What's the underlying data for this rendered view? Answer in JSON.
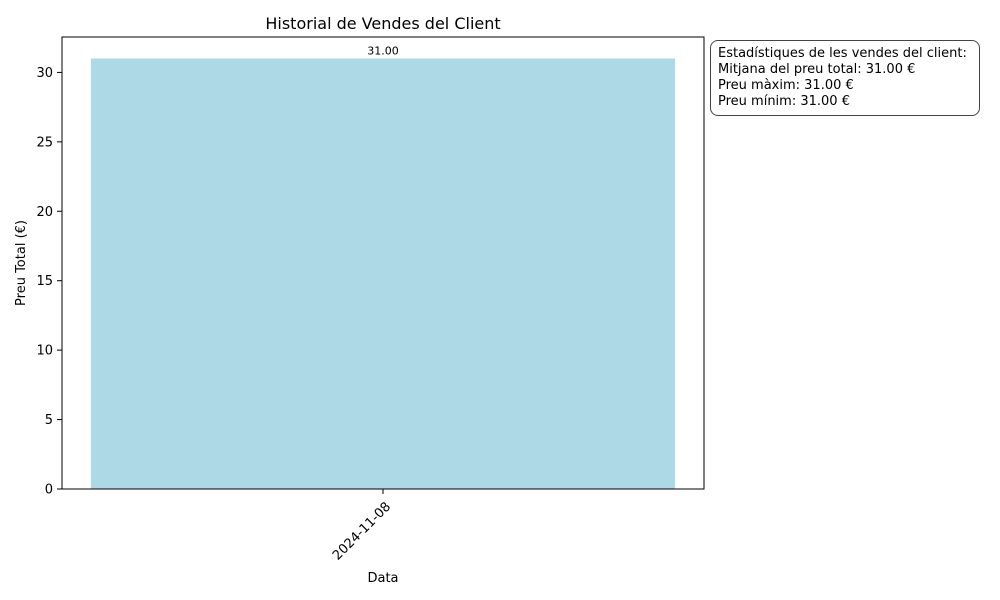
{
  "chart_data": {
    "type": "bar",
    "title": "Historial de Vendes del Client",
    "xlabel": "Data",
    "ylabel": "Preu Total (€)",
    "categories": [
      "2024-11-08"
    ],
    "values": [
      31.0
    ],
    "data_labels": [
      "31.00"
    ],
    "ylim": [
      0,
      32.55
    ],
    "yticks": [
      0,
      5,
      10,
      15,
      20,
      25,
      30
    ],
    "bar_color": "#add8e6",
    "grid": false,
    "legend": "none"
  },
  "stats": {
    "heading": "Estadístiques de les vendes del client:",
    "mean": "Mitjana del preu total: 31.00 €",
    "max": "Preu màxim: 31.00 €",
    "min": "Preu mínim: 31.00 €"
  }
}
